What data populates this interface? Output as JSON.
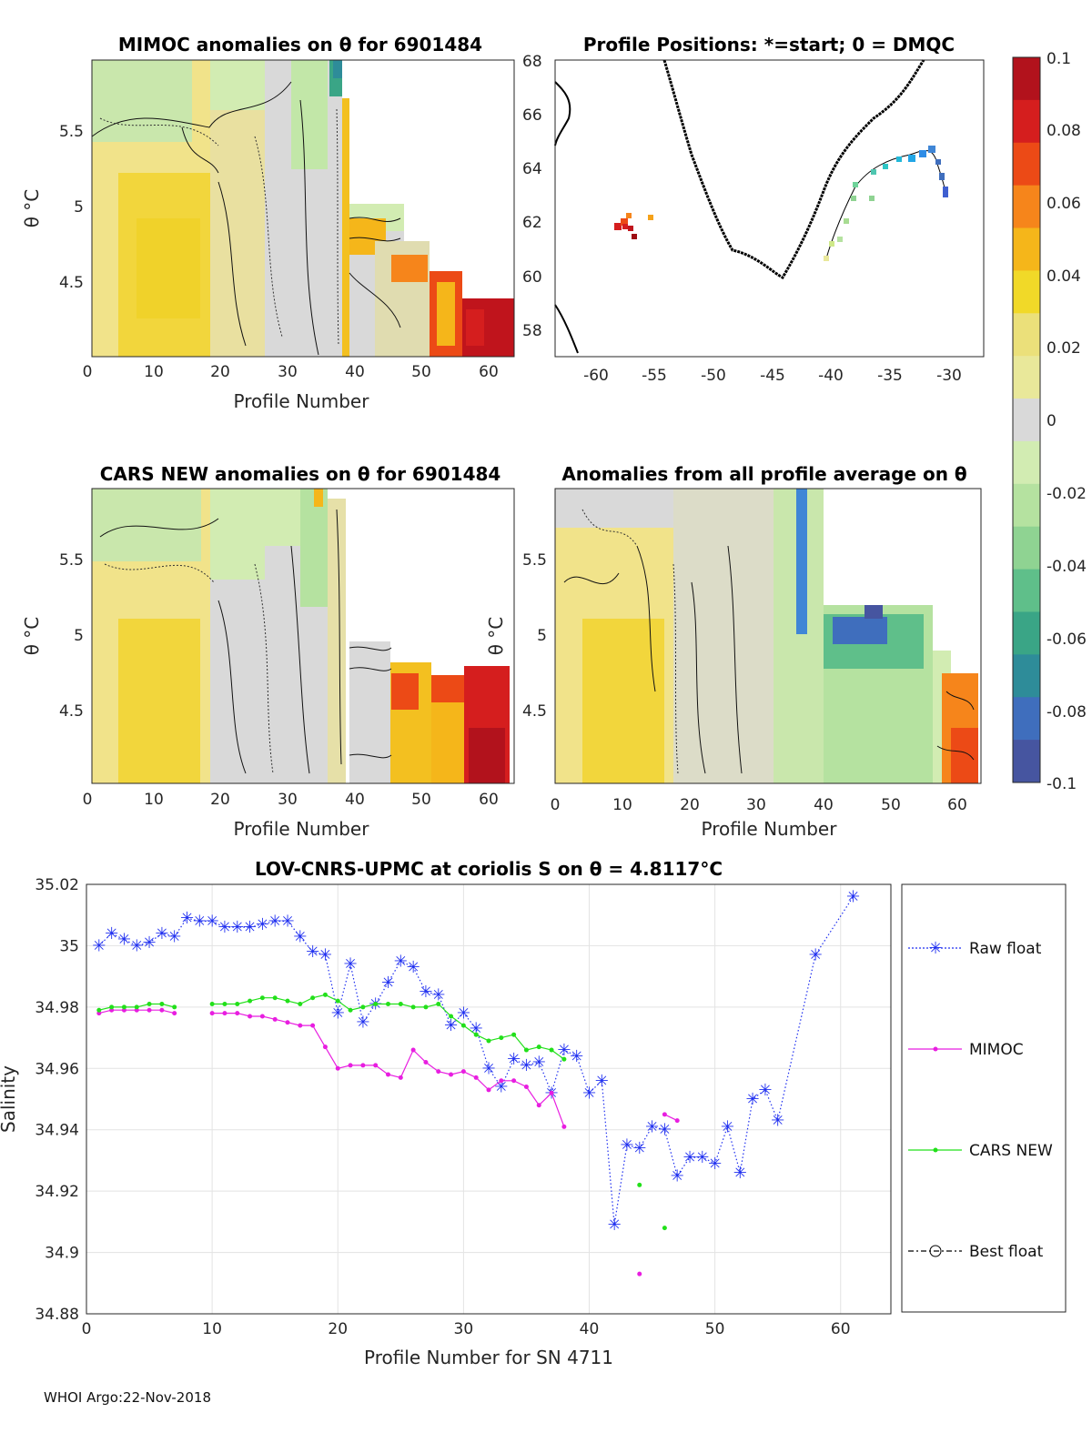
{
  "footer": "WHOI Argo:22-Nov-2018",
  "colorbar": {
    "ticks": [
      "0.1",
      "0.08",
      "0.06",
      "0.04",
      "0.02",
      "0",
      "-0.02",
      "-0.04",
      "-0.06",
      "-0.08",
      "-0.1"
    ],
    "colors": [
      "#b2121c",
      "#d51e1e",
      "#ec4a16",
      "#f6851b",
      "#f5b61a",
      "#f1d928",
      "#ebe07a",
      "#e9e89a",
      "#d9d9d9",
      "#d2ecb2",
      "#b5e2a0",
      "#8fd392",
      "#5fbf8a",
      "#3aa586",
      "#2e8c99",
      "#3f6ebd",
      "#4655a0"
    ]
  },
  "panel_a": {
    "title": "MIMOC anomalies on θ  for 6901484",
    "ylabel": "θ °C",
    "xlabel": "Profile Number",
    "xticks": [
      "0",
      "10",
      "20",
      "30",
      "40",
      "50",
      "60"
    ],
    "yticks": [
      "5.5",
      "5",
      "4.5"
    ]
  },
  "panel_b": {
    "title": "Profile Positions: *=start; 0 = DMQC",
    "xticks": [
      "-60",
      "-55",
      "-50",
      "-45",
      "-40",
      "-35",
      "-30"
    ],
    "yticks": [
      "68",
      "66",
      "64",
      "62",
      "60",
      "58"
    ]
  },
  "panel_c": {
    "title": "CARS NEW anomalies on θ for 6901484",
    "ylabel": "θ °C",
    "xlabel": "Profile Number",
    "xticks": [
      "0",
      "10",
      "20",
      "30",
      "40",
      "50",
      "60"
    ],
    "yticks": [
      "5.5",
      "5",
      "4.5"
    ]
  },
  "panel_d": {
    "title": "Anomalies from all profile average on θ",
    "ylabel": "θ °C",
    "xlabel": "Profile Number",
    "xticks": [
      "0",
      "10",
      "20",
      "30",
      "40",
      "50",
      "60"
    ],
    "yticks": [
      "5.5",
      "5",
      "4.5"
    ]
  },
  "chart_data": {
    "type": "line",
    "title": "LOV-CNRS-UPMC at coriolis S on θ = 4.8117°C",
    "xlabel": "Profile Number for SN 4711",
    "ylabel": "Salinity",
    "xlim": [
      0,
      64
    ],
    "ylim": [
      34.88,
      35.02
    ],
    "xticks": [
      "0",
      "10",
      "20",
      "30",
      "40",
      "50",
      "60"
    ],
    "yticks": [
      "35.02",
      "35",
      "34.98",
      "34.96",
      "34.94",
      "34.92",
      "34.9",
      "34.88"
    ],
    "grid": true,
    "legend_position": "right",
    "series": [
      {
        "name": "Raw float",
        "color": "#1f2ff0",
        "style": "dotted-star",
        "x": [
          1,
          2,
          3,
          4,
          5,
          6,
          7,
          8,
          9,
          10,
          11,
          12,
          13,
          14,
          15,
          16,
          17,
          18,
          19,
          20,
          21,
          22,
          23,
          24,
          25,
          26,
          27,
          28,
          29,
          30,
          31,
          32,
          33,
          34,
          35,
          36,
          37,
          38,
          39,
          40,
          41,
          42,
          43,
          44,
          45,
          46,
          47,
          48,
          49,
          50,
          51,
          52,
          53,
          54,
          55,
          58,
          61
        ],
        "y": [
          35.0,
          35.004,
          35.002,
          35.0,
          35.001,
          35.004,
          35.003,
          35.009,
          35.008,
          35.008,
          35.006,
          35.006,
          35.006,
          35.007,
          35.008,
          35.008,
          35.003,
          34.998,
          34.997,
          34.978,
          34.994,
          34.975,
          34.981,
          34.988,
          34.995,
          34.993,
          34.985,
          34.984,
          34.974,
          34.978,
          34.973,
          34.96,
          34.954,
          34.963,
          34.961,
          34.962,
          34.952,
          34.966,
          34.964,
          34.952,
          34.956,
          34.909,
          34.935,
          34.934,
          34.941,
          34.94,
          34.925,
          34.931,
          34.931,
          34.929,
          34.941,
          34.926,
          34.95,
          34.953,
          34.943,
          34.997,
          35.016
        ]
      },
      {
        "name": "MIMOC",
        "color": "#e81ee0",
        "style": "solid-dot",
        "segments": [
          {
            "x": [
              1,
              2,
              3,
              4,
              5,
              6,
              7
            ],
            "y": [
              34.978,
              34.979,
              34.979,
              34.979,
              34.979,
              34.979,
              34.978
            ]
          },
          {
            "x": [
              10,
              11,
              12,
              13,
              14,
              15,
              16,
              17,
              18,
              19,
              20,
              21,
              22,
              23,
              24,
              25,
              26,
              27,
              28,
              29,
              30,
              31,
              32,
              33,
              34,
              35,
              36,
              37,
              38
            ],
            "y": [
              34.978,
              34.978,
              34.978,
              34.977,
              34.977,
              34.976,
              34.975,
              34.974,
              34.974,
              34.967,
              34.96,
              34.961,
              34.961,
              34.961,
              34.958,
              34.957,
              34.966,
              34.962,
              34.959,
              34.958,
              34.959,
              34.957,
              34.953,
              34.956,
              34.956,
              34.954,
              34.948,
              34.952,
              34.941
            ]
          },
          {
            "x": [
              44
            ],
            "y": [
              34.893
            ]
          },
          {
            "x": [
              46,
              47
            ],
            "y": [
              34.945,
              34.943
            ]
          }
        ]
      },
      {
        "name": "CARS NEW",
        "color": "#22e01a",
        "style": "solid-dot",
        "segments": [
          {
            "x": [
              1,
              2,
              3,
              4,
              5,
              6,
              7
            ],
            "y": [
              34.979,
              34.98,
              34.98,
              34.98,
              34.981,
              34.981,
              34.98
            ]
          },
          {
            "x": [
              10,
              11,
              12,
              13,
              14,
              15,
              16,
              17,
              18,
              19,
              20,
              21,
              22,
              23,
              24,
              25,
              26,
              27,
              28,
              29,
              30,
              31,
              32,
              33,
              34,
              35,
              36,
              37,
              38
            ],
            "y": [
              34.981,
              34.981,
              34.981,
              34.982,
              34.983,
              34.983,
              34.982,
              34.981,
              34.983,
              34.984,
              34.982,
              34.979,
              34.98,
              34.981,
              34.981,
              34.981,
              34.98,
              34.98,
              34.981,
              34.977,
              34.974,
              34.971,
              34.969,
              34.97,
              34.971,
              34.966,
              34.967,
              34.966,
              34.963
            ]
          },
          {
            "x": [
              44
            ],
            "y": [
              34.922
            ]
          },
          {
            "x": [
              46
            ],
            "y": [
              34.908
            ]
          }
        ]
      },
      {
        "name": "Best float",
        "color": "#000000",
        "style": "dashdot-circle",
        "x": [],
        "y": []
      }
    ]
  }
}
